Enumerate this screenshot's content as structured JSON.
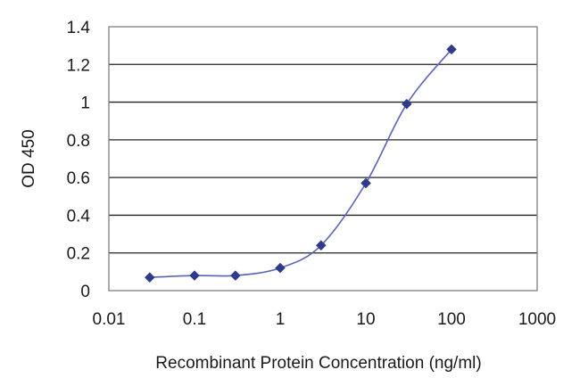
{
  "chart_data": {
    "type": "line",
    "title": "",
    "xlabel": "Recombinant Protein Concentration (ng/ml)",
    "ylabel": "OD 450",
    "x_scale": "log",
    "xlim": [
      0.01,
      1000
    ],
    "ylim": [
      0,
      1.4
    ],
    "x_ticks": [
      "0.01",
      "0.1",
      "1",
      "10",
      "100",
      "1000"
    ],
    "x_tick_values": [
      0.01,
      0.1,
      1,
      10,
      100,
      1000
    ],
    "y_ticks": [
      "0",
      "0.2",
      "0.4",
      "0.6",
      "0.8",
      "1",
      "1.2",
      "1.4"
    ],
    "y_tick_values": [
      0,
      0.2,
      0.4,
      0.6,
      0.8,
      1,
      1.2,
      1.4
    ],
    "grid": "horizontal",
    "series": [
      {
        "x": [
          0.03,
          0.1,
          0.3,
          1,
          3,
          10,
          30,
          100
        ],
        "y": [
          0.07,
          0.08,
          0.08,
          0.12,
          0.24,
          0.57,
          0.99,
          1.28
        ],
        "color": "#2e3a8c"
      }
    ]
  }
}
